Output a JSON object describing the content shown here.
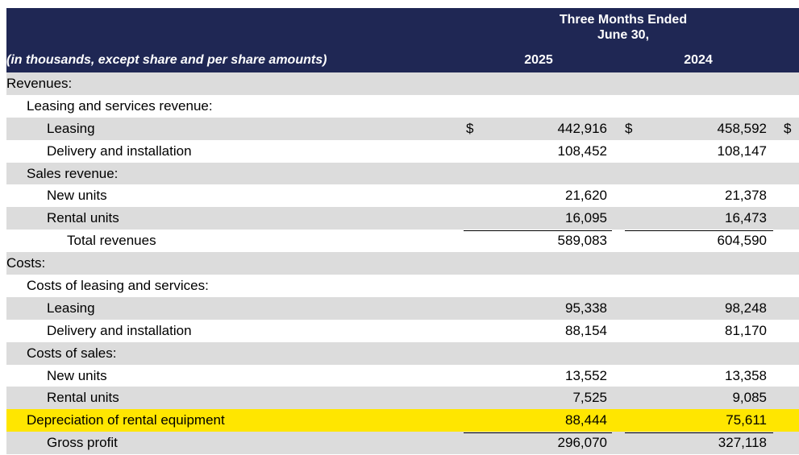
{
  "header": {
    "period_line1": "Three Months Ended",
    "period_line2": "June 30,",
    "units_label": "(in thousands, except share and per share amounts)",
    "year_1": "2025",
    "year_2": "2024"
  },
  "rows": [
    {
      "label": "Revenues:",
      "v2025": "",
      "v2024": ""
    },
    {
      "label": "Leasing and services revenue:",
      "v2025": "",
      "v2024": ""
    },
    {
      "label": "Leasing",
      "v2025": "442,916",
      "v2024": "458,592",
      "currency": "$"
    },
    {
      "label": "Delivery and installation",
      "v2025": "108,452",
      "v2024": "108,147"
    },
    {
      "label": "Sales revenue:",
      "v2025": "",
      "v2024": ""
    },
    {
      "label": "New units",
      "v2025": "21,620",
      "v2024": "21,378"
    },
    {
      "label": "Rental units",
      "v2025": "16,095",
      "v2024": "16,473"
    },
    {
      "label": "Total revenues",
      "v2025": "589,083",
      "v2024": "604,590"
    },
    {
      "label": "Costs:",
      "v2025": "",
      "v2024": ""
    },
    {
      "label": "Costs of leasing and services:",
      "v2025": "",
      "v2024": ""
    },
    {
      "label": "Leasing",
      "v2025": "95,338",
      "v2024": "98,248"
    },
    {
      "label": "Delivery and installation",
      "v2025": "88,154",
      "v2024": "81,170"
    },
    {
      "label": "Costs of sales:",
      "v2025": "",
      "v2024": ""
    },
    {
      "label": "New units",
      "v2025": "13,552",
      "v2024": "13,358"
    },
    {
      "label": "Rental units",
      "v2025": "7,525",
      "v2024": "9,085"
    },
    {
      "label": "Depreciation of rental equipment",
      "v2025": "88,444",
      "v2024": "75,611"
    },
    {
      "label": "Gross profit",
      "v2025": "296,070",
      "v2024": "327,118"
    }
  ],
  "colors": {
    "header_bg": "#1f2754",
    "shade": "#dcdcdc",
    "highlight": "#ffe600"
  }
}
